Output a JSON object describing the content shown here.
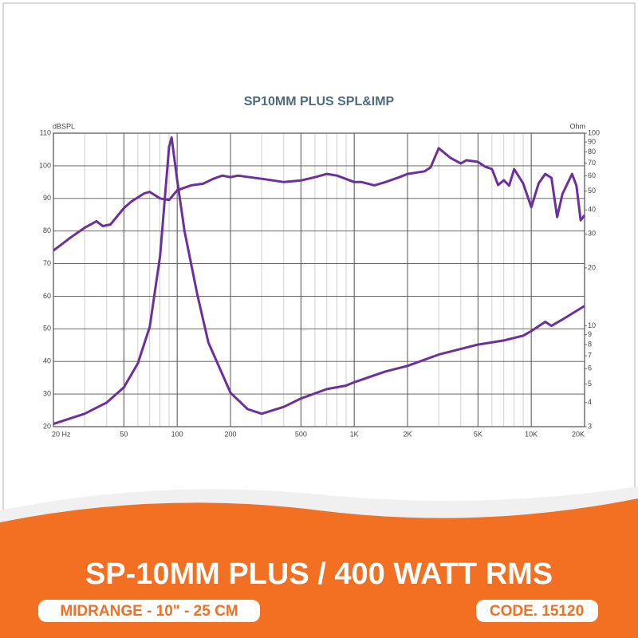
{
  "chart_data": {
    "type": "line",
    "title": "SP10MM PLUS SPL&IMP",
    "ylabel": "dBSPL",
    "y2label": "Ohm",
    "xscale": "log",
    "y2scale": "log",
    "grid": true,
    "xlim": [
      20,
      20000
    ],
    "ylim": [
      20,
      110
    ],
    "y2lim": [
      3,
      100
    ],
    "xticks": [
      {
        "value": 20,
        "label": "20 Hz"
      },
      50,
      100,
      200,
      500,
      {
        "value": 1000,
        "label": "1K"
      },
      {
        "value": 2000,
        "label": "2K"
      },
      {
        "value": 5000,
        "label": "5K"
      },
      {
        "value": 10000,
        "label": "10K"
      },
      {
        "value": 20000,
        "label": "20K"
      }
    ],
    "yticks": [
      20,
      30,
      40,
      50,
      60,
      70,
      80,
      90,
      100,
      110
    ],
    "y2ticks": [
      3,
      4,
      5,
      6,
      7,
      8,
      9,
      10,
      20,
      30,
      40,
      50,
      60,
      70,
      80,
      90,
      100
    ],
    "series": [
      {
        "axis": "y",
        "color": "#6b2f9e",
        "x": [
          20,
          25,
          30,
          35,
          38,
          42,
          50,
          55,
          65,
          70,
          80,
          90,
          100,
          120,
          140,
          160,
          180,
          200,
          220,
          300,
          350,
          400,
          500,
          600,
          700,
          800,
          1000,
          1100,
          1300,
          1500,
          1800,
          2000,
          2500,
          2700,
          3000,
          3500,
          4000,
          4300,
          5000,
          5500,
          6000,
          6500,
          7000,
          7500,
          8000,
          9000,
          10000,
          11000,
          12000,
          13000,
          14000,
          15000,
          17000,
          18000,
          19000,
          20000
        ],
        "values": [
          74,
          78,
          81,
          83,
          81.5,
          82,
          87,
          89,
          91.5,
          92,
          90,
          89.5,
          92.5,
          94,
          94.5,
          96,
          97,
          96.5,
          97,
          96,
          95.5,
          95,
          95.5,
          96.5,
          97.5,
          97,
          95,
          95,
          94,
          95,
          96.5,
          97.5,
          98.3,
          99.5,
          105.4,
          102.4,
          100.7,
          101.7,
          101.2,
          99.7,
          99,
          94.1,
          95.6,
          93.9,
          99,
          94.6,
          87.3,
          94.6,
          97.5,
          96.3,
          84.3,
          91.4,
          97.5,
          93.9,
          83.3,
          84.8
        ]
      },
      {
        "axis": "y2",
        "color": "#6b2f9e",
        "x": [
          20,
          30,
          40,
          50,
          60,
          70,
          80,
          85,
          90,
          93,
          100,
          110,
          130,
          150,
          200,
          250,
          300,
          400,
          500,
          700,
          900,
          1000,
          1500,
          2000,
          3000,
          5000,
          7000,
          9000,
          10000,
          12000,
          13000,
          15000,
          20000
        ],
        "values": [
          3.1,
          3.5,
          4.0,
          4.8,
          6.4,
          9.9,
          23,
          45,
          85,
          95,
          57,
          31,
          14.5,
          8.2,
          4.5,
          3.7,
          3.5,
          3.8,
          4.2,
          4.7,
          4.9,
          5.1,
          5.8,
          6.2,
          7.1,
          8.0,
          8.4,
          8.9,
          9.4,
          10.5,
          10,
          10.8,
          12.7
        ]
      }
    ]
  },
  "banner": {
    "title": "SP-10MM PLUS / 400 WATT RMS",
    "left_tag": "MIDRANGE - 10\" - 25 CM",
    "right_tag": "CODE. 15120"
  }
}
